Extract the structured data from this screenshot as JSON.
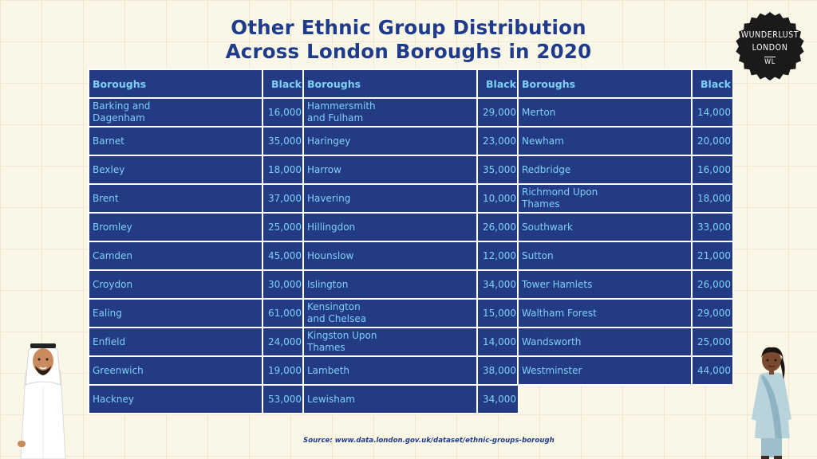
{
  "title": {
    "line1": "Other Ethnic Group Distribution",
    "line2": "Across London Boroughs in 2020"
  },
  "logo": {
    "line1": "WUNDERLUST",
    "line2": "LONDON",
    "mark": "WL"
  },
  "columns": {
    "boroughs": "Boroughs",
    "value": "Black"
  },
  "tables": [
    [
      {
        "borough": "Barking and Dagenham",
        "value": "16,000"
      },
      {
        "borough": "Barnet",
        "value": "35,000"
      },
      {
        "borough": "Bexley",
        "value": "18,000"
      },
      {
        "borough": "Brent",
        "value": "37,000"
      },
      {
        "borough": "Bromley",
        "value": "25,000"
      },
      {
        "borough": "Camden",
        "value": "45,000"
      },
      {
        "borough": "Croydon",
        "value": "30,000"
      },
      {
        "borough": "Ealing",
        "value": "61,000"
      },
      {
        "borough": "Enfield",
        "value": "24,000"
      },
      {
        "borough": "Greenwich",
        "value": "19,000"
      },
      {
        "borough": "Hackney",
        "value": "53,000"
      }
    ],
    [
      {
        "borough": "Hammersmith and Fulham",
        "value": "29,000"
      },
      {
        "borough": "Haringey",
        "value": "23,000"
      },
      {
        "borough": "Harrow",
        "value": "35,000"
      },
      {
        "borough": "Havering",
        "value": "10,000"
      },
      {
        "borough": "Hillingdon",
        "value": "26,000"
      },
      {
        "borough": "Hounslow",
        "value": "12,000"
      },
      {
        "borough": "Islington",
        "value": "34,000"
      },
      {
        "borough": "Kensington and Chelsea",
        "value": "15,000"
      },
      {
        "borough": "Kingston Upon Thames",
        "value": "14,000"
      },
      {
        "borough": "Lambeth",
        "value": "38,000"
      },
      {
        "borough": "Lewisham",
        "value": "34,000"
      }
    ],
    [
      {
        "borough": "Merton",
        "value": "14,000"
      },
      {
        "borough": "Newham",
        "value": "20,000"
      },
      {
        "borough": "Redbridge",
        "value": "16,000"
      },
      {
        "borough": "Richmond Upon Thames",
        "value": "18,000"
      },
      {
        "borough": "Southwark",
        "value": "33,000"
      },
      {
        "borough": "Sutton",
        "value": "21,000"
      },
      {
        "borough": "Tower Hamlets",
        "value": "26,000"
      },
      {
        "borough": "Waltham Forest",
        "value": "29,000"
      },
      {
        "borough": "Wandsworth",
        "value": "25,000"
      },
      {
        "borough": "Westminster",
        "value": "44,000"
      }
    ]
  ],
  "source": "Source: www.data.london.gov.uk/dataset/ethnic-groups-borough",
  "colors": {
    "title": "#1f3b8c",
    "cell_background": "#233b85",
    "cell_text": "#7fd0f6",
    "page_background": "#fbf7e7",
    "logo_background": "#1a1a1a"
  },
  "icons": [
    "man-in-ghutra-illustration",
    "woman-in-salwar-illustration"
  ]
}
